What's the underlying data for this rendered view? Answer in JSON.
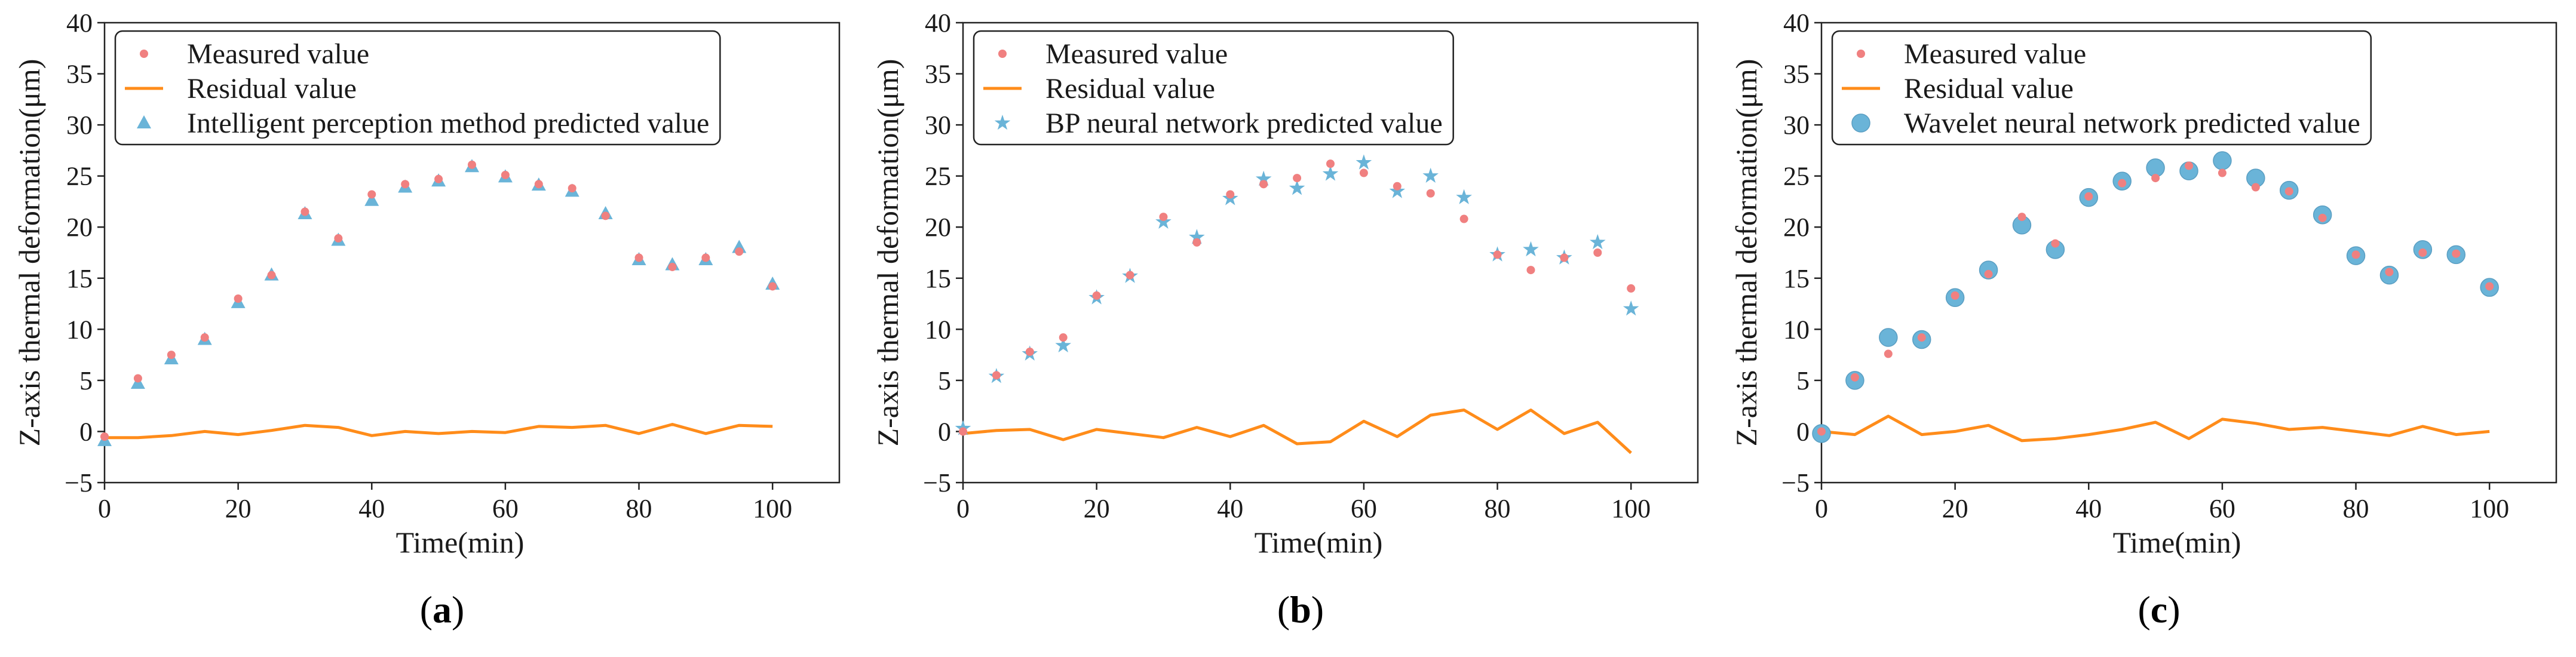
{
  "chart_data": [
    {
      "type": "scatter",
      "panel_label": "a",
      "xlabel": "Time(min)",
      "ylabel": "Z-axis thermal deformation(μm)",
      "xlim": [
        0,
        110
      ],
      "ylim": [
        -5,
        40
      ],
      "xticks": [
        0,
        20,
        40,
        60,
        80,
        100
      ],
      "yticks": [
        -5,
        0,
        5,
        10,
        15,
        20,
        25,
        30,
        35,
        40
      ],
      "legend_position": "top-left",
      "x": [
        0,
        5,
        10,
        15,
        20,
        25,
        30,
        35,
        40,
        45,
        50,
        55,
        60,
        65,
        70,
        75,
        80,
        85,
        90,
        95,
        100
      ],
      "series": [
        {
          "name": "Measured value",
          "kind": "dot",
          "color": "#f08080",
          "values": [
            -0.5,
            5.2,
            7.5,
            9.2,
            13.0,
            15.3,
            21.5,
            18.9,
            23.2,
            24.2,
            24.7,
            26.1,
            25.1,
            24.2,
            23.8,
            21.1,
            17.0,
            16.1,
            17.0,
            17.6,
            14.2
          ]
        },
        {
          "name": "Residual value",
          "kind": "line",
          "color": "#ff8c1a",
          "values": [
            -0.6,
            -0.6,
            -0.4,
            0.0,
            -0.3,
            0.1,
            0.6,
            0.4,
            -0.4,
            0.0,
            -0.2,
            0.0,
            -0.1,
            0.5,
            0.4,
            0.6,
            -0.2,
            0.7,
            -0.2,
            0.6,
            0.5
          ]
        },
        {
          "name": "Intelligent perception method predicted value",
          "kind": "triangle",
          "color": "#6ab4d8",
          "values": [
            -0.9,
            4.7,
            7.1,
            9.0,
            12.6,
            15.3,
            21.3,
            18.7,
            22.6,
            23.9,
            24.5,
            25.9,
            24.9,
            24.1,
            23.5,
            21.3,
            16.8,
            16.3,
            16.8,
            18.0,
            14.4
          ]
        }
      ]
    },
    {
      "type": "scatter",
      "panel_label": "b",
      "xlabel": "Time(min)",
      "ylabel": "Z-axis thermal deformation(μm)",
      "xlim": [
        0,
        110
      ],
      "ylim": [
        -5,
        40
      ],
      "xticks": [
        0,
        20,
        40,
        60,
        80,
        100
      ],
      "yticks": [
        -5,
        0,
        5,
        10,
        15,
        20,
        25,
        30,
        35,
        40
      ],
      "legend_position": "top-left",
      "x": [
        0,
        5,
        10,
        15,
        20,
        25,
        30,
        35,
        40,
        45,
        50,
        55,
        60,
        65,
        70,
        75,
        80,
        85,
        90,
        95,
        100
      ],
      "series": [
        {
          "name": "Measured value",
          "kind": "dot",
          "color": "#f08080",
          "values": [
            0.0,
            5.5,
            7.8,
            9.2,
            13.3,
            15.3,
            21.0,
            18.5,
            23.2,
            24.2,
            24.8,
            26.2,
            25.3,
            24.0,
            23.3,
            20.8,
            17.3,
            15.8,
            17.0,
            17.5,
            14.0
          ]
        },
        {
          "name": "Residual value",
          "kind": "line",
          "color": "#ff8c1a",
          "values": [
            -0.2,
            0.1,
            0.2,
            -0.8,
            0.2,
            -0.2,
            -0.6,
            0.4,
            -0.5,
            0.6,
            -1.2,
            -1.0,
            1.0,
            -0.5,
            1.6,
            2.1,
            0.2,
            2.1,
            -0.2,
            0.9,
            -2.1
          ]
        },
        {
          "name": "BP neural network predicted value",
          "kind": "star",
          "color": "#6ab4d8",
          "values": [
            0.3,
            5.4,
            7.6,
            8.4,
            13.1,
            15.2,
            20.5,
            19.0,
            22.8,
            24.7,
            23.8,
            25.2,
            26.3,
            23.5,
            25.0,
            22.9,
            17.3,
            17.8,
            17.0,
            18.5,
            12.0
          ]
        }
      ]
    },
    {
      "type": "scatter",
      "panel_label": "c",
      "xlabel": "Time(min)",
      "ylabel": "Z-axis thermal deformation(μm)",
      "xlim": [
        0,
        110
      ],
      "ylim": [
        -5,
        40
      ],
      "xticks": [
        0,
        20,
        40,
        60,
        80,
        100
      ],
      "yticks": [
        -5,
        0,
        5,
        10,
        15,
        20,
        25,
        30,
        35,
        40
      ],
      "legend_position": "top-left",
      "x": [
        0,
        5,
        10,
        15,
        20,
        25,
        30,
        35,
        40,
        45,
        50,
        55,
        60,
        65,
        70,
        75,
        80,
        85,
        90,
        95,
        100
      ],
      "series": [
        {
          "name": "Measured value",
          "kind": "dot",
          "color": "#f08080",
          "values": [
            0.0,
            5.3,
            7.6,
            9.2,
            13.3,
            15.4,
            21.0,
            18.4,
            23.0,
            24.3,
            24.8,
            26.0,
            25.3,
            23.9,
            23.5,
            20.9,
            17.3,
            15.6,
            17.5,
            17.4,
            14.2
          ]
        },
        {
          "name": "Residual value",
          "kind": "line",
          "color": "#ff8c1a",
          "values": [
            0.0,
            -0.3,
            1.5,
            -0.3,
            0.0,
            0.6,
            -0.9,
            -0.7,
            -0.3,
            0.2,
            0.9,
            -0.7,
            1.2,
            0.8,
            0.2,
            0.4,
            0.0,
            -0.4,
            0.5,
            -0.3,
            0.0
          ]
        },
        {
          "name": "Wavelet neural network predicted value",
          "kind": "circle",
          "color": "#6ab4d8",
          "values": [
            -0.2,
            5.0,
            9.2,
            9.0,
            13.1,
            15.8,
            20.2,
            17.8,
            22.9,
            24.5,
            25.8,
            25.5,
            26.5,
            24.8,
            23.6,
            21.2,
            17.2,
            15.3,
            17.8,
            17.3,
            14.1
          ]
        }
      ]
    }
  ]
}
